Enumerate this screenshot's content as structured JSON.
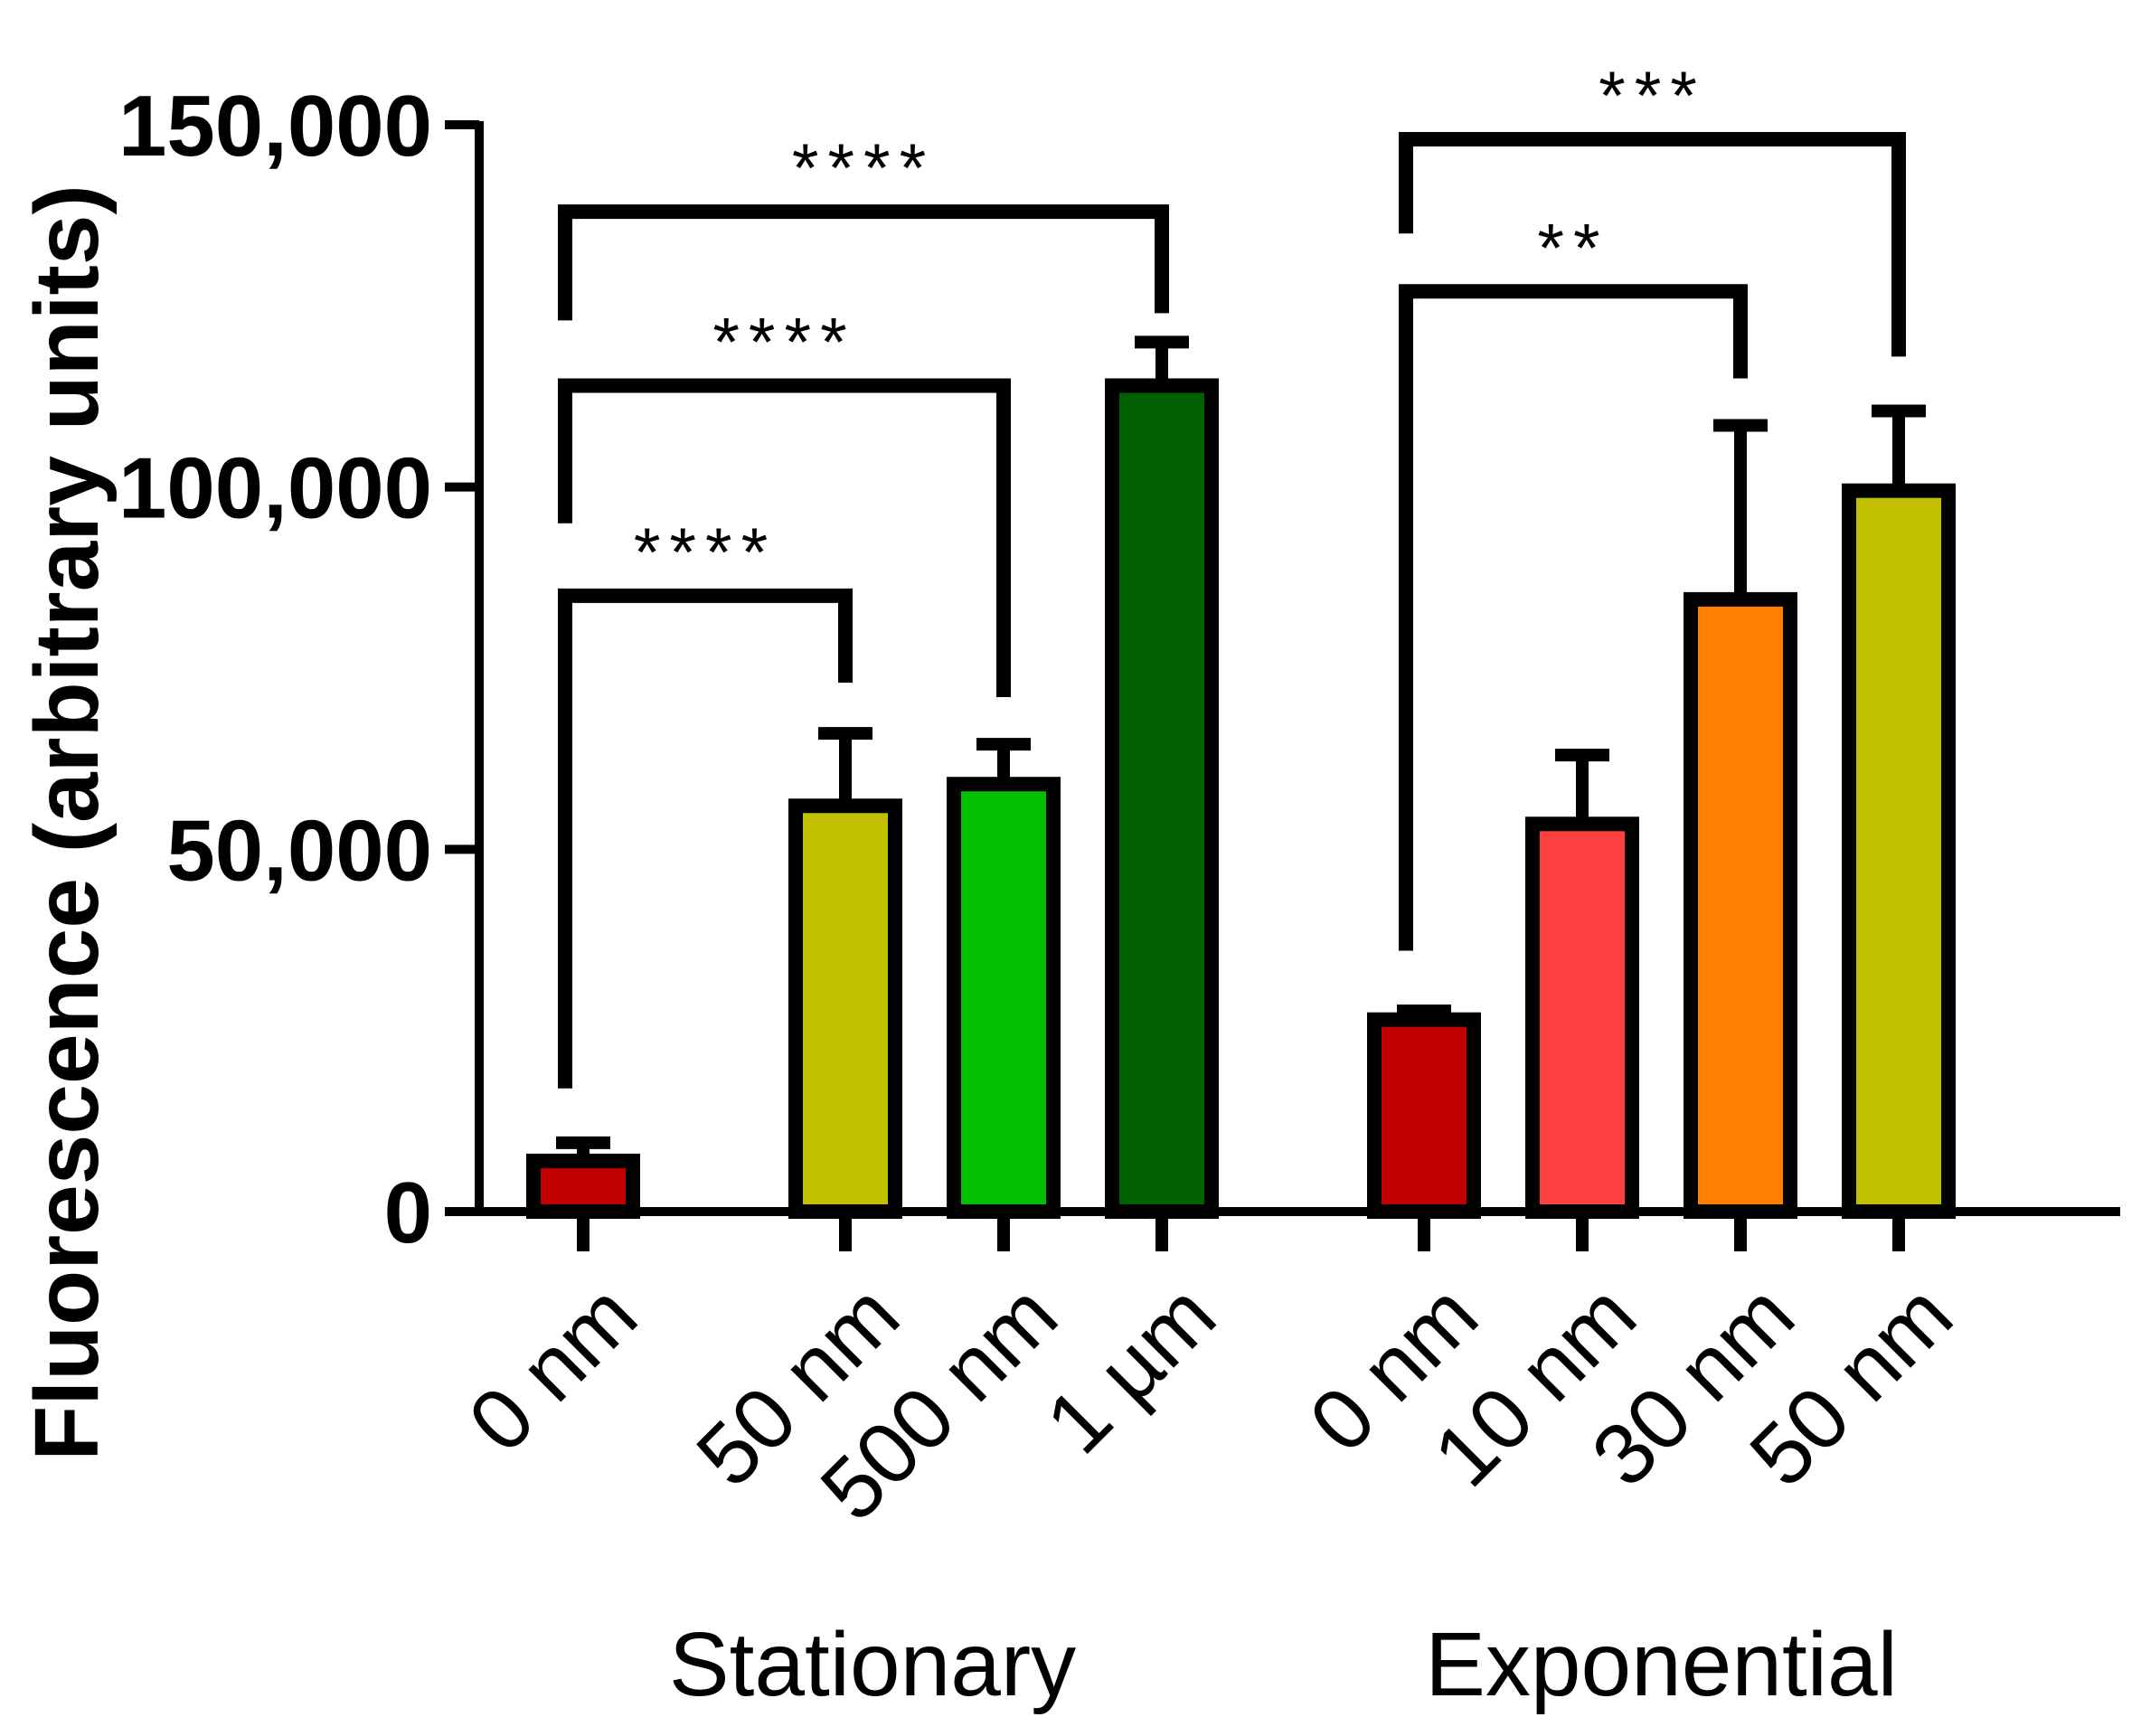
{
  "chart_data": {
    "type": "bar",
    "ylabel": "Fluorescence (arbitrary units)",
    "ylim": [
      0,
      150000
    ],
    "yticks": [
      {
        "value": 0,
        "label": "0"
      },
      {
        "value": 50000,
        "label": "50,000"
      },
      {
        "value": 100000,
        "label": "100,000"
      },
      {
        "value": 150000,
        "label": "150,000"
      }
    ],
    "groups": [
      {
        "name": "Stationary",
        "start": 0,
        "end": 3
      },
      {
        "name": "Exponential",
        "start": 4,
        "end": 7
      }
    ],
    "categories": [
      "0 nm",
      "50 nm",
      "500 nm",
      "1 µm",
      "0 nm",
      "10 nm",
      "30 nm",
      "50 nm"
    ],
    "values": [
      7000,
      56000,
      59000,
      114000,
      26500,
      53500,
      84500,
      99500
    ],
    "errors": [
      2500,
      10000,
      5500,
      6000,
      1200,
      9500,
      24000,
      11000
    ],
    "colors": [
      "#c00000",
      "#c0c000",
      "#00c000",
      "#006000",
      "#c00000",
      "#ff4040",
      "#ff8000",
      "#c0c000"
    ],
    "significance": [
      {
        "from": 0,
        "to": 1,
        "label": "****",
        "level": 85000,
        "left_drop": 17000,
        "right_drop": 73000
      },
      {
        "from": 0,
        "to": 2,
        "label": "****",
        "level": 114000,
        "left_drop": 95000,
        "right_drop": 71000
      },
      {
        "from": 0,
        "to": 3,
        "label": "****",
        "level": 138000,
        "left_drop": 123000,
        "right_drop": 124000
      },
      {
        "from": 4,
        "to": 6,
        "label": "**",
        "level": 127000,
        "left_drop": 36000,
        "right_drop": 115000
      },
      {
        "from": 4,
        "to": 7,
        "label": "***",
        "level": 148000,
        "left_drop": 135000,
        "right_drop": 118000
      }
    ]
  }
}
